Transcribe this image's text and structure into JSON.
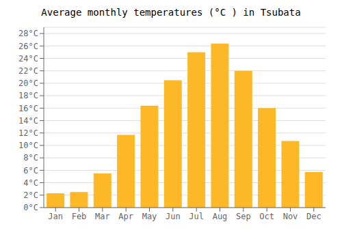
{
  "chart_data": {
    "type": "bar",
    "title": "Average monthly temperatures (°C ) in Tsubata",
    "categories": [
      "Jan",
      "Feb",
      "Mar",
      "Apr",
      "May",
      "Jun",
      "Jul",
      "Aug",
      "Sep",
      "Oct",
      "Nov",
      "Dec"
    ],
    "values": [
      2.3,
      2.5,
      5.5,
      11.7,
      16.4,
      20.5,
      25.0,
      26.4,
      22.0,
      16.0,
      10.7,
      5.7
    ],
    "color": "#FDB827",
    "ylim": [
      0,
      29
    ],
    "yticks": [
      {
        "value": 0,
        "label": "0°C"
      },
      {
        "value": 2,
        "label": "2°C"
      },
      {
        "value": 4,
        "label": "4°C"
      },
      {
        "value": 6,
        "label": "6°C"
      },
      {
        "value": 8,
        "label": "8°C"
      },
      {
        "value": 10,
        "label": "10°C"
      },
      {
        "value": 12,
        "label": "12°C"
      },
      {
        "value": 14,
        "label": "14°C"
      },
      {
        "value": 16,
        "label": "16°C"
      },
      {
        "value": 18,
        "label": "18°C"
      },
      {
        "value": 20,
        "label": "20°C"
      },
      {
        "value": 22,
        "label": "22°C"
      },
      {
        "value": 24,
        "label": "24°C"
      },
      {
        "value": 26,
        "label": "26°C"
      },
      {
        "value": 28,
        "label": "28°C"
      }
    ],
    "grid": true
  }
}
